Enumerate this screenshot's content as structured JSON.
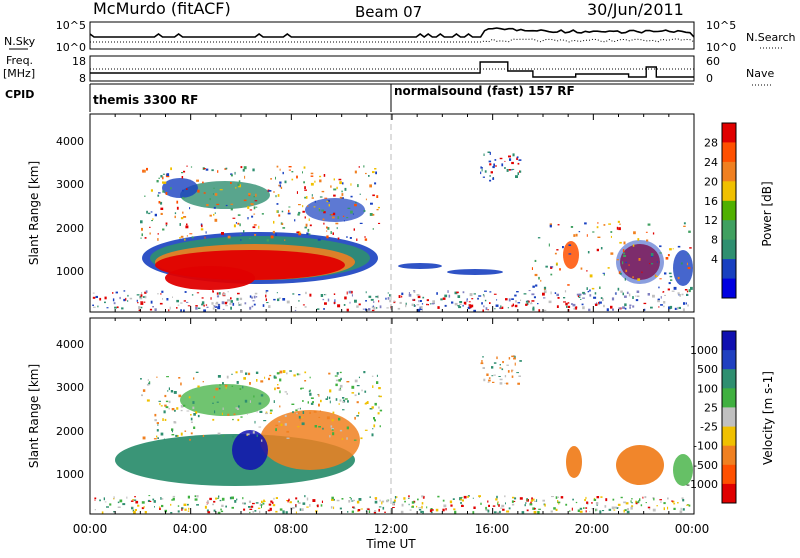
{
  "header": {
    "title": "McMurdo (fitACF)",
    "beam": "Beam 07",
    "date": "30/Jun/2011"
  },
  "sky_panel": {
    "left_label": "N.Sky",
    "left_ticks": [
      "10^5",
      "10^0"
    ],
    "right_ticks": [
      "10^5",
      "10^0"
    ],
    "right_label": "N.Search"
  },
  "freq_panel": {
    "left_label_1": "Freq.",
    "left_label_2": "[MHz]",
    "left_ticks": [
      "18",
      "8"
    ],
    "right_ticks": [
      "60",
      "0"
    ],
    "right_label": "Nave"
  },
  "cpid_panel": {
    "label": "CPID",
    "program_1": "themis 3300 RF",
    "program_2": "normalsound (fast) 157 RF"
  },
  "chart_data": [
    {
      "type": "heatmap",
      "name": "Power",
      "ylabel": "Slant Range [km]",
      "y_ticks": [
        "1000",
        "2000",
        "3000",
        "4000"
      ],
      "colorbar_label": "Power [dB]",
      "colorbar_ticks": [
        "28",
        "24",
        "20",
        "16",
        "12",
        "8",
        "4"
      ],
      "colorbar_colors": [
        "#e00000",
        "#ff5000",
        "#f08020",
        "#f0c000",
        "#50b000",
        "#40a060",
        "#2f8f70",
        "#1840c0",
        "#0000e0"
      ]
    },
    {
      "type": "heatmap",
      "name": "Velocity",
      "ylabel": "Slant Range [km]",
      "y_ticks": [
        "1000",
        "2000",
        "3000",
        "4000"
      ],
      "colorbar_label": "Velocity [m s-1]",
      "colorbar_ticks": [
        "1000",
        "500",
        "100",
        "25",
        "-25",
        "-100",
        "-500",
        "-1000"
      ],
      "colorbar_colors": [
        "#1010b0",
        "#2040c0",
        "#2f8f70",
        "#40b040",
        "#c0c0c0",
        "#f0c000",
        "#f08020",
        "#ff5000",
        "#e00000"
      ],
      "xlabel": "Time UT",
      "x_ticks": [
        "00:00",
        "04:00",
        "08:00",
        "12:00",
        "16:00",
        "20:00",
        "00:00"
      ]
    }
  ]
}
